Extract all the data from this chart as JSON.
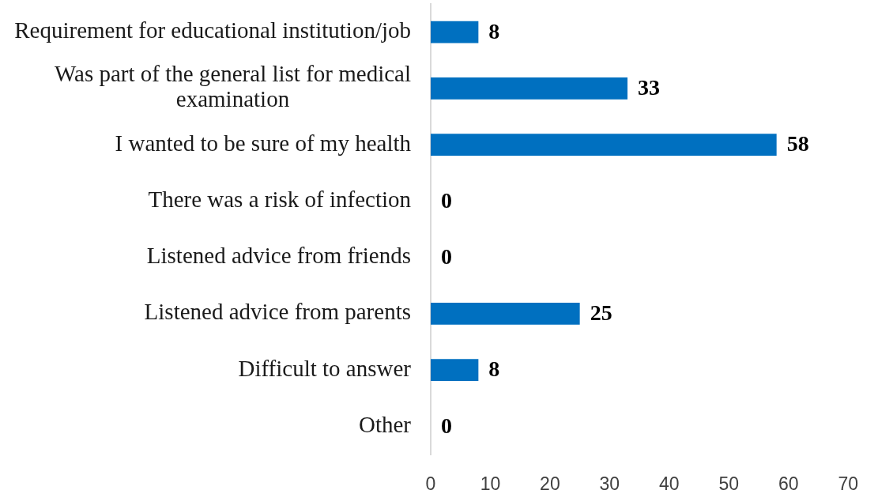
{
  "chart_data": {
    "type": "bar",
    "orientation": "horizontal",
    "categories": [
      "Requirement for educational institution/job",
      "Was part of the general list for medical examination",
      "I wanted to be sure of my health",
      "There was a risk of infection",
      "Listened advice from friends",
      "Listened advice from parents",
      "Difficult to answer",
      "Other"
    ],
    "values": [
      8,
      33,
      58,
      0,
      0,
      25,
      8,
      0
    ],
    "color": "#0070c0",
    "xlim": [
      0,
      70
    ],
    "xticks": [
      0,
      10,
      20,
      30,
      40,
      50,
      60,
      70
    ],
    "data_labels": true
  }
}
